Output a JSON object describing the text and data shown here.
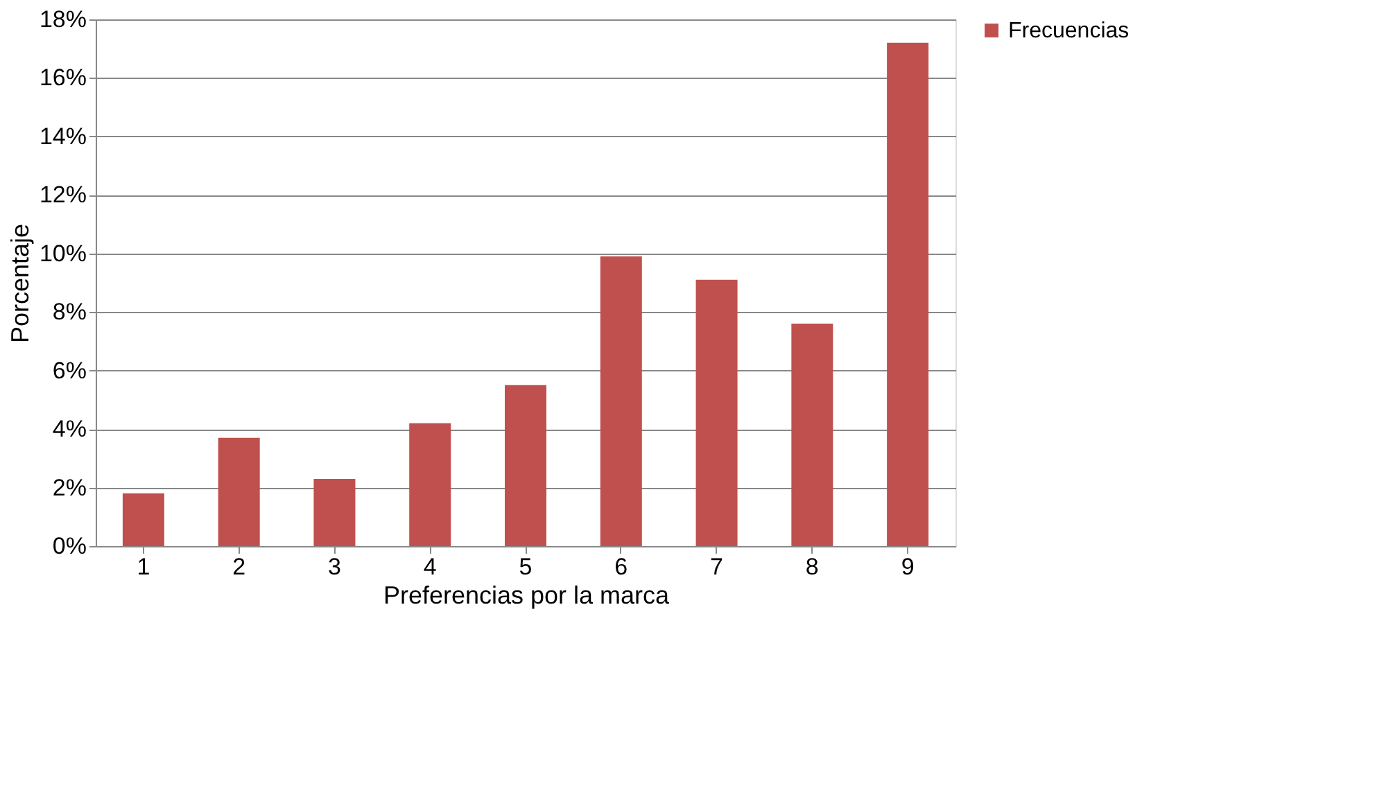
{
  "chart_data": {
    "type": "bar",
    "xlabel": "Preferencias por la marca",
    "ylabel": "Porcentaje",
    "categories": [
      "1",
      "2",
      "3",
      "4",
      "5",
      "6",
      "7",
      "8",
      "9"
    ],
    "series": [
      {
        "name": "Frecuencias",
        "color": "#c0504d",
        "values": [
          1.8,
          3.7,
          2.3,
          4.2,
          5.5,
          9.9,
          9.1,
          7.6,
          17.2
        ]
      }
    ],
    "ylim": [
      0,
      18
    ],
    "yticks": [
      {
        "value": 0,
        "label": "0%"
      },
      {
        "value": 2,
        "label": "2%"
      },
      {
        "value": 4,
        "label": "4%"
      },
      {
        "value": 6,
        "label": "6%"
      },
      {
        "value": 8,
        "label": "8%"
      },
      {
        "value": 10,
        "label": "10%"
      },
      {
        "value": 12,
        "label": "12%"
      },
      {
        "value": 14,
        "label": "14%"
      },
      {
        "value": 16,
        "label": "16%"
      },
      {
        "value": 18,
        "label": "18%"
      }
    ],
    "grid": "y",
    "legend": "right"
  }
}
